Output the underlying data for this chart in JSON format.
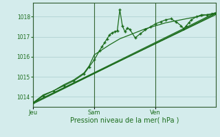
{
  "xlabel": "Pression niveau de la mer( hPa )",
  "bg_color": "#d4ecec",
  "grid_color": "#a8cccc",
  "line_color": "#1a6b1a",
  "ylim": [
    1013.5,
    1018.7
  ],
  "xlim": [
    0,
    143
  ],
  "day_labels": [
    "Jeu",
    "Sam",
    "Ven"
  ],
  "day_positions": [
    0,
    48,
    96
  ],
  "lines": [
    {
      "x": [
        0,
        143
      ],
      "y": [
        1013.65,
        1018.15
      ],
      "with_markers": false,
      "lw": 0.9
    },
    {
      "x": [
        0,
        143
      ],
      "y": [
        1013.7,
        1018.2
      ],
      "with_markers": false,
      "lw": 0.9
    },
    {
      "x": [
        0,
        143
      ],
      "y": [
        1013.7,
        1018.1
      ],
      "with_markers": false,
      "lw": 0.9
    },
    {
      "x": [
        0,
        8,
        16,
        24,
        32,
        40,
        44,
        48,
        54,
        60,
        64,
        68,
        72,
        80,
        88,
        96,
        104,
        112,
        120,
        128,
        136,
        143
      ],
      "y": [
        1013.7,
        1014.1,
        1014.3,
        1014.6,
        1014.85,
        1015.2,
        1015.55,
        1016.1,
        1016.35,
        1016.6,
        1016.75,
        1016.9,
        1017.0,
        1017.2,
        1017.4,
        1017.55,
        1017.7,
        1017.8,
        1017.9,
        1018.0,
        1018.1,
        1018.15
      ],
      "with_markers": false,
      "lw": 0.9
    },
    {
      "x": [
        0,
        8,
        16,
        24,
        32,
        40,
        44,
        48,
        52,
        54,
        56,
        58,
        60,
        62,
        64,
        66,
        68,
        70,
        72,
        74,
        76,
        80,
        84,
        88,
        92,
        96,
        100,
        104,
        108,
        112,
        116,
        118,
        120,
        122,
        124,
        128,
        132,
        136,
        140,
        143
      ],
      "y": [
        1013.7,
        1014.05,
        1014.3,
        1014.55,
        1014.8,
        1015.15,
        1015.5,
        1015.85,
        1016.3,
        1016.5,
        1016.7,
        1016.9,
        1017.1,
        1017.2,
        1017.25,
        1017.3,
        1018.35,
        1017.55,
        1017.25,
        1017.45,
        1017.35,
        1016.95,
        1017.15,
        1017.35,
        1017.5,
        1017.65,
        1017.75,
        1017.85,
        1017.9,
        1017.75,
        1017.55,
        1017.4,
        1017.55,
        1017.7,
        1017.85,
        1018.0,
        1018.1,
        1018.1,
        1018.15,
        1018.2
      ],
      "with_markers": true,
      "marker_every": 1,
      "lw": 0.9
    }
  ]
}
